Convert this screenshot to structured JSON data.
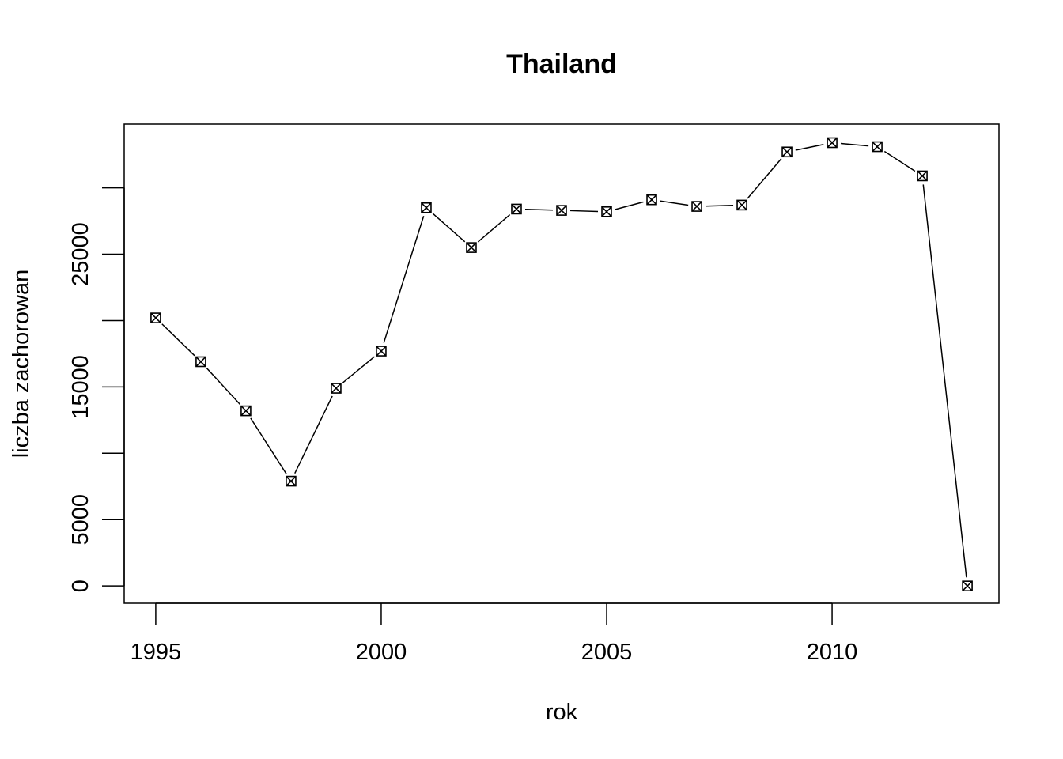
{
  "chart_data": {
    "type": "line",
    "title": "Thailand",
    "xlabel": "rok",
    "ylabel": "liczba zachorowan",
    "x": [
      1995,
      1996,
      1997,
      1998,
      1999,
      2000,
      2001,
      2002,
      2003,
      2004,
      2005,
      2006,
      2007,
      2008,
      2009,
      2010,
      2011,
      2012,
      2013
    ],
    "series": [
      {
        "values": [
          20200,
          16900,
          13200,
          7900,
          14900,
          17700,
          28500,
          25500,
          28400,
          28300,
          28200,
          29100,
          28600,
          28700,
          32700,
          33400,
          33100,
          30900,
          0
        ]
      }
    ],
    "xlim": [
      1994.3,
      2013.7
    ],
    "ylim": [
      -1300,
      34800
    ],
    "x_ticks": [
      1995,
      2000,
      2005,
      2010
    ],
    "y_ticks": [
      0,
      5000,
      15000,
      25000
    ],
    "y_tick_marks": [
      0,
      5000,
      10000,
      15000,
      20000,
      25000,
      30000
    ],
    "marker": "crossed-square",
    "line_style": "solid",
    "grid": false,
    "legend": "none",
    "color": "#000000"
  }
}
